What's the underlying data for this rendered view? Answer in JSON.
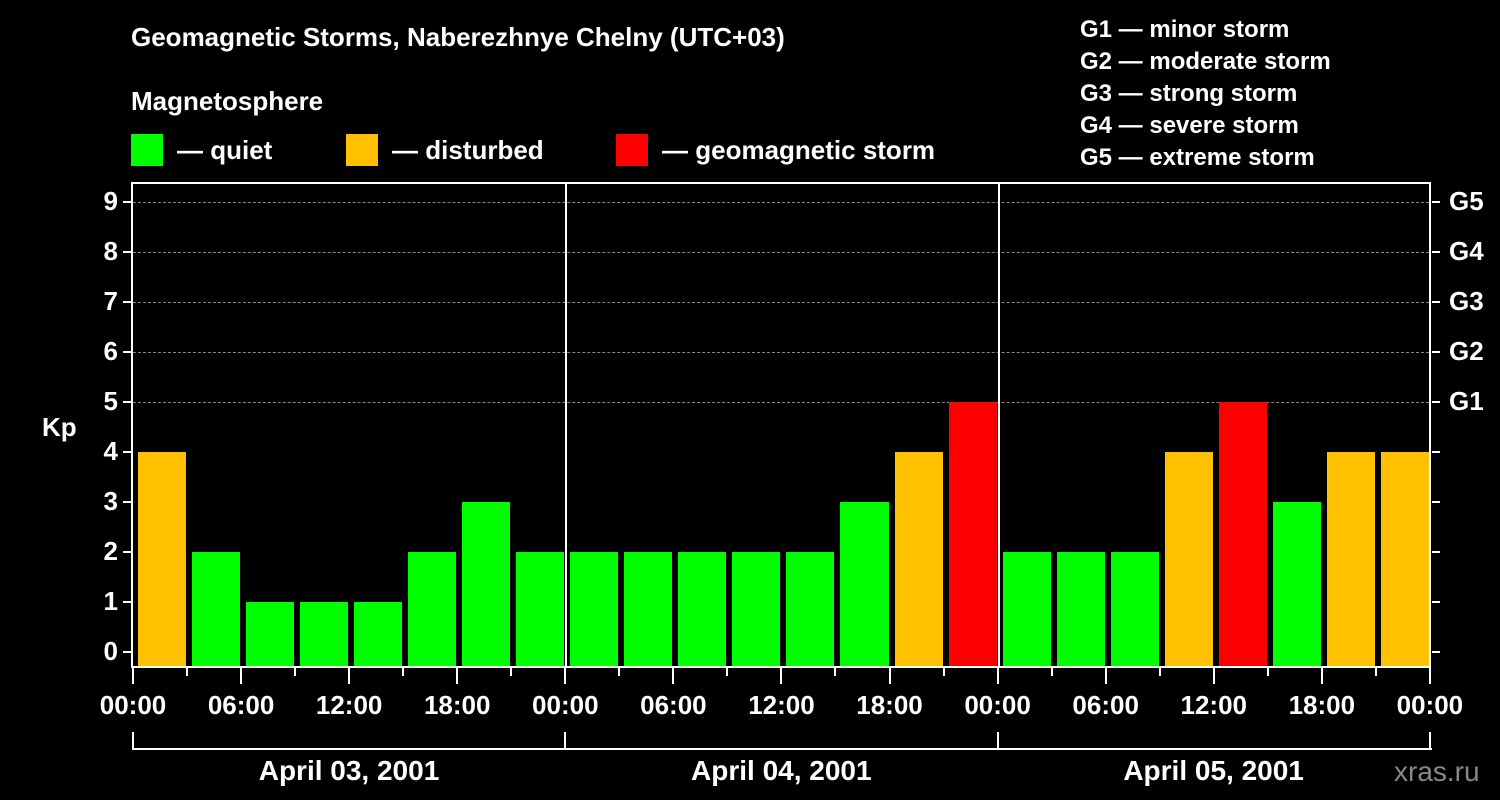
{
  "header": {
    "title": "Geomagnetic Storms, Naberezhnye Chelny (UTC+03)",
    "subtitle": "Magnetosphere"
  },
  "legend": [
    {
      "label": "— quiet",
      "color": "#00ff00"
    },
    {
      "label": "— disturbed",
      "color": "#ffc000"
    },
    {
      "label": "— geomagnetic storm",
      "color": "#ff0000"
    }
  ],
  "g_levels": [
    "G1 — minor storm",
    "G2 — moderate storm",
    "G3 — strong storm",
    "G4 — severe storm",
    "G5 — extreme storm"
  ],
  "axis": {
    "ylabel": "Kp",
    "yticks": [
      "0",
      "1",
      "2",
      "3",
      "4",
      "5",
      "6",
      "7",
      "8",
      "9"
    ],
    "right_ticks": [
      {
        "kp": 5,
        "label": "G1"
      },
      {
        "kp": 6,
        "label": "G2"
      },
      {
        "kp": 7,
        "label": "G3"
      },
      {
        "kp": 8,
        "label": "G4"
      },
      {
        "kp": 9,
        "label": "G5"
      }
    ],
    "xticks": [
      "00:00",
      "06:00",
      "12:00",
      "18:00",
      "00:00",
      "06:00",
      "12:00",
      "18:00",
      "00:00",
      "06:00",
      "12:00",
      "18:00",
      "00:00"
    ],
    "dates": [
      "April 03, 2001",
      "April 04, 2001",
      "April 05, 2001"
    ]
  },
  "brand": "xras.ru",
  "colors": {
    "quiet": "#00ff00",
    "disturbed": "#ffc000",
    "storm": "#ff0000"
  },
  "chart_data": {
    "type": "bar",
    "title": "Geomagnetic Storms, Naberezhnye Chelny (UTC+03)",
    "xlabel": "",
    "ylabel": "Kp",
    "ylim": [
      0,
      9
    ],
    "grid": "dashed horizontal lines at Kp 5–9",
    "categories": [
      "Apr03 00-03",
      "Apr03 03-06",
      "Apr03 06-09",
      "Apr03 09-12",
      "Apr03 12-15",
      "Apr03 15-18",
      "Apr03 18-21",
      "Apr03 21-24",
      "Apr04 00-03",
      "Apr04 03-06",
      "Apr04 06-09",
      "Apr04 09-12",
      "Apr04 12-15",
      "Apr04 15-18",
      "Apr04 18-21",
      "Apr04 21-24",
      "Apr05 00-03",
      "Apr05 03-06",
      "Apr05 06-09",
      "Apr05 09-12",
      "Apr05 12-15",
      "Apr05 15-18",
      "Apr05 18-21",
      "Apr05 21-24"
    ],
    "values": [
      4,
      2,
      1,
      1,
      1,
      2,
      3,
      2,
      2,
      2,
      2,
      2,
      2,
      3,
      4,
      5,
      2,
      2,
      2,
      4,
      5,
      3,
      4,
      4
    ],
    "status": [
      "disturbed",
      "quiet",
      "quiet",
      "quiet",
      "quiet",
      "quiet",
      "quiet",
      "quiet",
      "quiet",
      "quiet",
      "quiet",
      "quiet",
      "quiet",
      "quiet",
      "disturbed",
      "storm",
      "quiet",
      "quiet",
      "quiet",
      "disturbed",
      "storm",
      "quiet",
      "disturbed",
      "disturbed"
    ],
    "legend": [
      "quiet",
      "disturbed",
      "geomagnetic storm"
    ]
  }
}
